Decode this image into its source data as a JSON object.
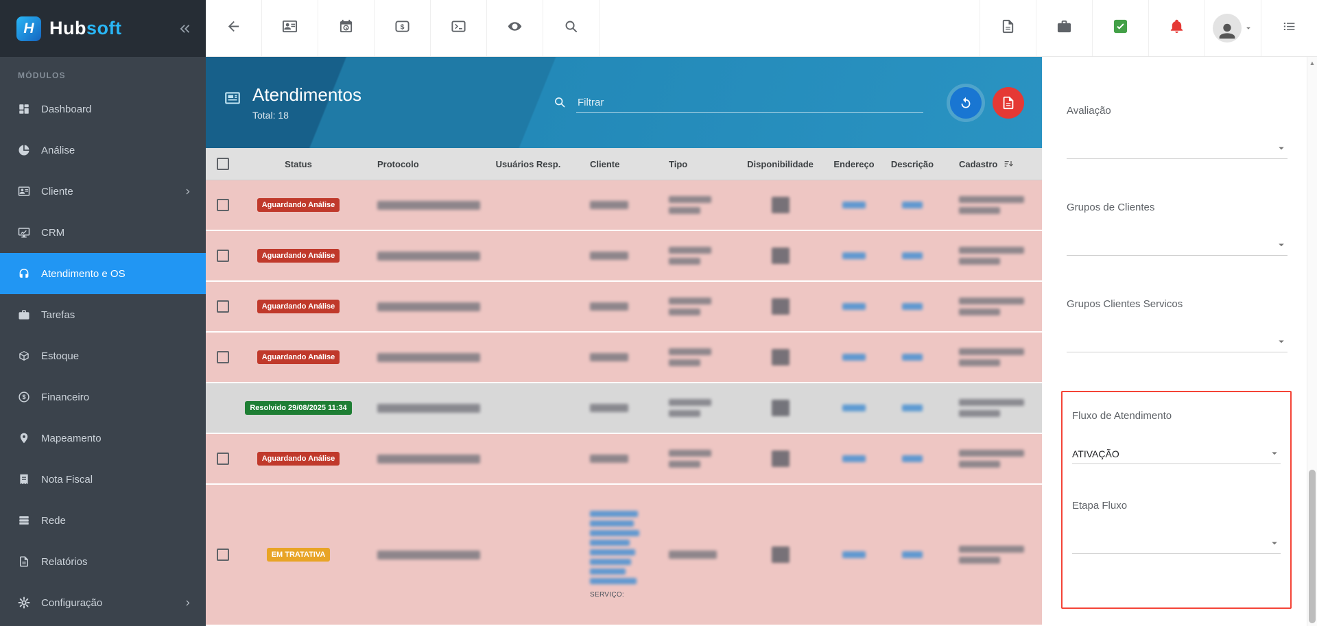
{
  "brand": {
    "mark": "H",
    "name_bold": "Hub",
    "name_light": "soft"
  },
  "colors": {
    "accent": "#2196f3",
    "header_blue": "#2389b8",
    "sidebar": "#3b434c",
    "badge_danger": "#c0392b",
    "badge_success": "#1e7e34",
    "badge_warning": "#e8a426",
    "highlight_border": "#f44336",
    "row_pending": "#eec6c3",
    "row_resolved": "#d8d8d8"
  },
  "topbar": {
    "icons_left": [
      {
        "name": "arrow-left"
      },
      {
        "name": "contact-card"
      },
      {
        "name": "calendar-clock"
      },
      {
        "name": "dollar-card"
      },
      {
        "name": "terminal"
      },
      {
        "name": "eye"
      },
      {
        "name": "search"
      }
    ],
    "icons_right": [
      {
        "name": "pdf-file"
      },
      {
        "name": "briefcase"
      },
      {
        "name": "check-square"
      },
      {
        "name": "bell",
        "color": "red"
      },
      {
        "name": "avatar"
      },
      {
        "name": "menu-list"
      }
    ]
  },
  "sidebar": {
    "section": "MÓDULOS",
    "items": [
      {
        "label": "Dashboard",
        "icon": "dashboard"
      },
      {
        "label": "Análise",
        "icon": "pie"
      },
      {
        "label": "Cliente",
        "icon": "contact-card",
        "chevron": true
      },
      {
        "label": "CRM",
        "icon": "crm"
      },
      {
        "label": "Atendimento e OS",
        "icon": "headset",
        "active": true
      },
      {
        "label": "Tarefas",
        "icon": "briefcase"
      },
      {
        "label": "Estoque",
        "icon": "box"
      },
      {
        "label": "Financeiro",
        "icon": "dollar-circle"
      },
      {
        "label": "Mapeamento",
        "icon": "map-pin"
      },
      {
        "label": "Nota Fiscal",
        "icon": "receipt"
      },
      {
        "label": "Rede",
        "icon": "layers"
      },
      {
        "label": "Relatórios",
        "icon": "doc"
      },
      {
        "label": "Configuração",
        "icon": "gear",
        "chevron": true
      }
    ]
  },
  "page": {
    "title": "Atendimentos",
    "total": "Total: 18",
    "filter_placeholder": "Filtrar"
  },
  "table": {
    "columns": [
      {
        "label": "Status"
      },
      {
        "label": "Protocolo"
      },
      {
        "label": "Usuários Resp."
      },
      {
        "label": "Cliente"
      },
      {
        "label": "Tipo"
      },
      {
        "label": "Disponibilidade"
      },
      {
        "label": "Endereço"
      },
      {
        "label": "Descrição"
      },
      {
        "label": "Cadastro",
        "sort": true
      }
    ],
    "rows": [
      {
        "status": "Aguardando Análise",
        "variant": "danger"
      },
      {
        "status": "Aguardando Análise",
        "variant": "danger"
      },
      {
        "status": "Aguardando Análise",
        "variant": "danger"
      },
      {
        "status": "Aguardando Análise",
        "variant": "danger"
      },
      {
        "status": "Resolvido 29/08/2025 11:34",
        "variant": "success",
        "resolved": true,
        "no_checkbox": true
      },
      {
        "status": "Aguardando Análise",
        "variant": "danger"
      },
      {
        "status": "EM TRATATIVA",
        "variant": "warning",
        "tall": true,
        "service_label": "SERVIÇO:"
      }
    ]
  },
  "panel": {
    "filters": [
      {
        "label": "Avaliação",
        "value": ""
      },
      {
        "label": "Grupos de Clientes",
        "value": ""
      },
      {
        "label": "Grupos Clientes Servicos",
        "value": ""
      },
      {
        "label": "Fluxo de Atendimento",
        "value": "ATIVAÇÃO",
        "highlight": true
      },
      {
        "label": "Etapa Fluxo",
        "value": "",
        "highlight": true
      }
    ]
  },
  "scrollbar": {
    "up_arrow": "▲"
  }
}
